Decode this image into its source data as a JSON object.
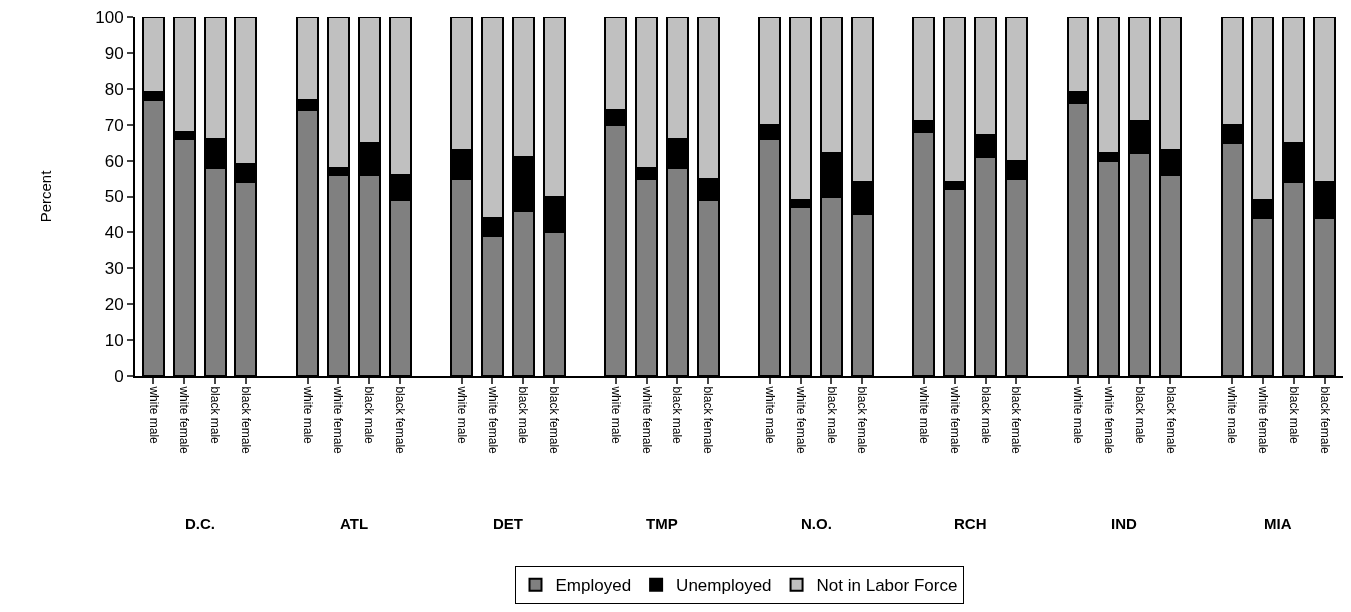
{
  "chart_data": {
    "type": "bar",
    "stacked": true,
    "ylabel": "Percent",
    "categories": [
      "white male",
      "white female",
      "black male",
      "black female",
      "white male",
      "white female",
      "black male",
      "black female",
      "white male",
      "white female",
      "black male",
      "black female",
      "white male",
      "white female",
      "black male",
      "black female",
      "white male",
      "white female",
      "black male",
      "black female",
      "white male",
      "white female",
      "black male",
      "black female",
      "white male",
      "white female",
      "black male",
      "black female",
      "white male",
      "white female",
      "black male",
      "black female"
    ],
    "series": [
      {
        "name": "Employed",
        "color": "#808080",
        "values": [
          77,
          66,
          58,
          54,
          74,
          56,
          56,
          49,
          55,
          39,
          46,
          40,
          70,
          55,
          58,
          49,
          66,
          47,
          50,
          45,
          68,
          52,
          61,
          55,
          76,
          60,
          62,
          56,
          65,
          44,
          54,
          44
        ]
      },
      {
        "name": "Unemployed",
        "color": "#000000",
        "values": [
          2,
          2,
          8,
          5,
          3,
          2,
          9,
          7,
          8,
          5,
          15,
          10,
          4,
          3,
          8,
          6,
          4,
          2,
          12,
          9,
          3,
          2,
          6,
          5,
          3,
          2,
          9,
          7,
          5,
          5,
          11,
          10
        ]
      },
      {
        "name": "Not in Labor Force",
        "color": "#c0c0c0",
        "values": [
          21,
          32,
          34,
          41,
          23,
          42,
          35,
          44,
          37,
          56,
          39,
          50,
          26,
          42,
          34,
          45,
          30,
          51,
          38,
          46,
          29,
          46,
          33,
          40,
          21,
          38,
          29,
          37,
          30,
          51,
          35,
          46
        ]
      }
    ],
    "annotations": [
      "D.C.",
      "ATL",
      "DET",
      "TMP",
      "N.O.",
      "RCH",
      "IND",
      "MIA"
    ],
    "ylim": [
      0,
      100
    ],
    "yticks": [
      0,
      10,
      20,
      30,
      40,
      50,
      60,
      70,
      80,
      90,
      100
    ],
    "grid": false,
    "legend": "bottom"
  }
}
